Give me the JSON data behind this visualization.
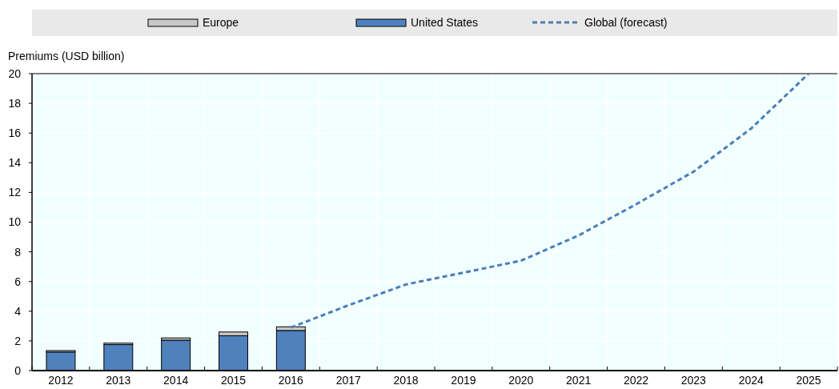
{
  "chart_data": {
    "type": "bar",
    "ylabel": "Premiums (USD billion)",
    "categories": [
      "2012",
      "2013",
      "2014",
      "2015",
      "2016",
      "2017",
      "2018",
      "2019",
      "2020",
      "2021",
      "2022",
      "2023",
      "2024",
      "2025"
    ],
    "stacked": true,
    "series": [
      {
        "name": "United States",
        "color": "#4f81bd",
        "values": [
          1.25,
          1.75,
          2.05,
          2.35,
          2.7,
          null,
          null,
          null,
          null,
          null,
          null,
          null,
          null,
          null
        ]
      },
      {
        "name": "Europe",
        "color": "#c8c8c8",
        "values": [
          0.1,
          0.1,
          0.15,
          0.25,
          0.25,
          null,
          null,
          null,
          null,
          null,
          null,
          null,
          null,
          null
        ]
      },
      {
        "name": "Global (forecast)",
        "type": "line",
        "color": "#4a7ebb",
        "line_style": "dashed",
        "values": [
          null,
          null,
          null,
          null,
          2.9,
          4.4,
          5.8,
          6.6,
          7.4,
          9.1,
          11.2,
          13.4,
          16.3,
          20
        ]
      }
    ],
    "ylim": [
      0,
      20
    ],
    "yticks": [
      0,
      2,
      4,
      6,
      8,
      10,
      12,
      14,
      16,
      18,
      20
    ],
    "grid": true,
    "legend": "top"
  }
}
